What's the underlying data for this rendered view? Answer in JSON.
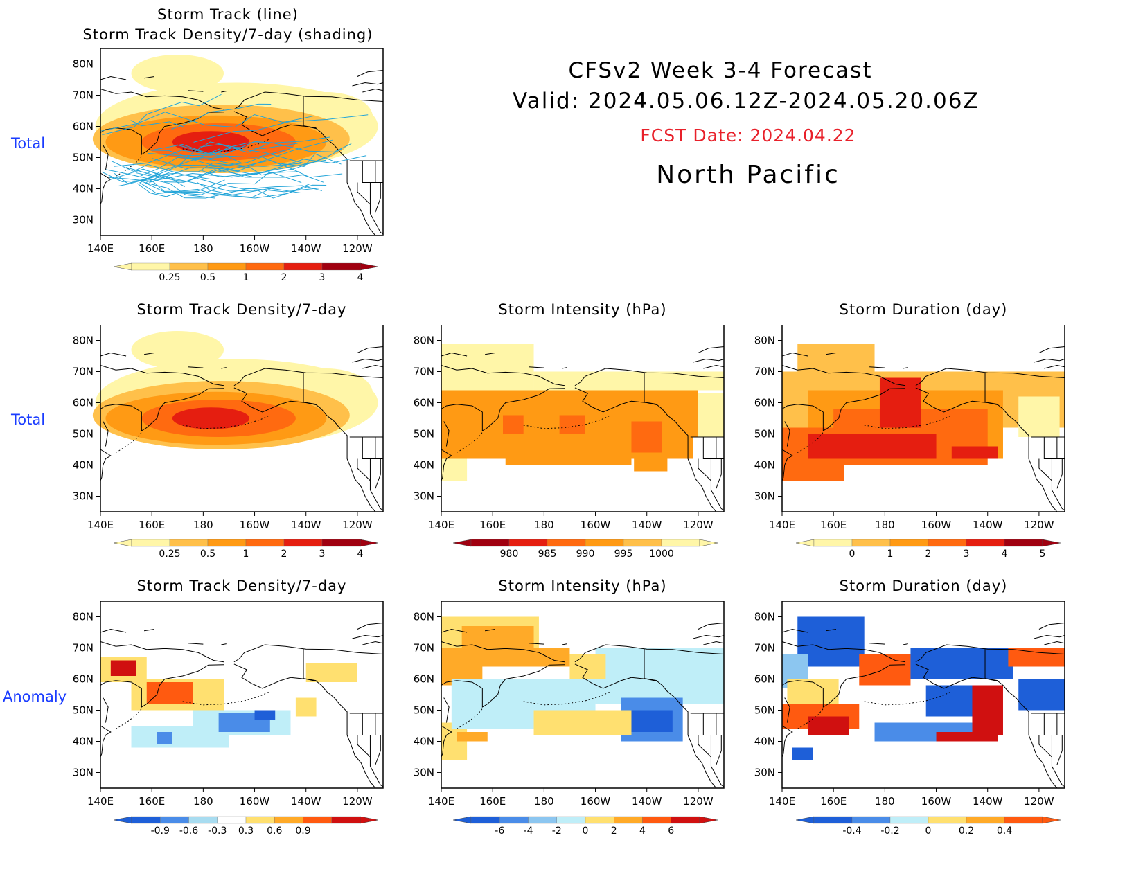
{
  "header": {
    "line1": "CFSv2  Week  3-4  Forecast",
    "line2": "Valid:  2024.05.06.12Z-2024.05.20.06Z",
    "fcst_date": "FCST Date: 2024.04.22",
    "region": "North  Pacific",
    "fcst_color": "#e8202a"
  },
  "row_labels": {
    "row1": "Total",
    "row2": "Total",
    "row3": "Anomaly"
  },
  "axes": {
    "lon_ticks": [
      "140E",
      "160E",
      "180",
      "160W",
      "140W",
      "120W"
    ],
    "lat_ticks": [
      "80N",
      "70N",
      "60N",
      "50N",
      "40N",
      "30N"
    ]
  },
  "panels": {
    "p1": {
      "title1": "Storm Track (line)",
      "title2": "Storm Track Density/7-day (shading)"
    },
    "p2": {
      "title": "Storm Track Density/7-day"
    },
    "p3": {
      "title": "Storm Intensity (hPa)"
    },
    "p4": {
      "title": "Storm Duration (day)"
    },
    "p5": {
      "title": "Storm Track Density/7-day"
    },
    "p6": {
      "title": "Storm Intensity (hPa)"
    },
    "p7": {
      "title": "Storm Duration (day)"
    }
  },
  "colorbars": {
    "density": {
      "labels": [
        "0.25",
        "0.5",
        "1",
        "2",
        "3",
        "4"
      ],
      "colors": [
        "#fff6a8",
        "#ffc04a",
        "#ff9a14",
        "#ff6a10",
        "#e51e10",
        "#a00010"
      ]
    },
    "intensity": {
      "labels": [
        "980",
        "985",
        "990",
        "995",
        "1000"
      ],
      "colors": [
        "#a00010",
        "#e51e10",
        "#ff6a10",
        "#ff9a14",
        "#ffc04a",
        "#fff6a8"
      ]
    },
    "duration": {
      "labels": [
        "0",
        "1",
        "2",
        "3",
        "4",
        "5"
      ],
      "colors": [
        "#fff6a8",
        "#ffc04a",
        "#ff9a14",
        "#ff6a10",
        "#e51e10",
        "#a00010"
      ]
    },
    "density_anom": {
      "labels": [
        "-0.9",
        "-0.6",
        "-0.3",
        "0.3",
        "0.6",
        "0.9"
      ],
      "colors": [
        "#1e5fd8",
        "#4a8ce8",
        "#a8dcf0",
        "#ffffff",
        "#ffe070",
        "#ffaa28",
        "#ff5a10",
        "#d01010"
      ]
    },
    "intensity_anom": {
      "labels": [
        "-6",
        "-4",
        "-2",
        "0",
        "2",
        "4",
        "6"
      ],
      "colors": [
        "#1e5fd8",
        "#4a8ce8",
        "#8cc6f0",
        "#bfeef8",
        "#ffe070",
        "#ffaa28",
        "#ff5a10",
        "#d01010"
      ]
    },
    "duration_anom": {
      "labels": [
        "-0.4",
        "-0.2",
        "0",
        "0.2",
        "0.4"
      ],
      "colors": [
        "#1e5fd8",
        "#4a8ce8",
        "#bfeef8",
        "#ffe070",
        "#ffaa28",
        "#ff5a10"
      ]
    }
  },
  "chart_data": [
    {
      "type": "heatmap",
      "title": "Storm Track (line) / Storm Track Density/7-day (shading)",
      "xlim": [
        "140E",
        "110W"
      ],
      "ylim": [
        "25N",
        "85N"
      ],
      "description_levels": [
        0.25,
        0.5,
        1,
        2,
        3,
        4
      ],
      "max_center": {
        "lon": 185,
        "lat": 55,
        "value": 3.5
      }
    },
    {
      "type": "heatmap",
      "title": "Storm Track Density/7-day",
      "levels": [
        0.25,
        0.5,
        1,
        2,
        3,
        4
      ],
      "max_center": {
        "lon": 185,
        "lat": 55,
        "value": 3.5
      }
    },
    {
      "type": "heatmap",
      "title": "Storm Intensity (hPa)",
      "levels": [
        980,
        985,
        990,
        995,
        1000
      ]
    },
    {
      "type": "heatmap",
      "title": "Storm Duration (day)",
      "levels": [
        0,
        1,
        2,
        3,
        4,
        5
      ]
    },
    {
      "type": "heatmap",
      "title": "Storm Track Density/7-day",
      "levels": [
        -0.9,
        -0.6,
        -0.3,
        0.3,
        0.6,
        0.9
      ]
    },
    {
      "type": "heatmap",
      "title": "Storm Intensity (hPa)",
      "levels": [
        -6,
        -4,
        -2,
        0,
        2,
        4,
        6
      ]
    },
    {
      "type": "heatmap",
      "title": "Storm Duration (day)",
      "levels": [
        -0.4,
        -0.2,
        0,
        0.2,
        0.4
      ]
    }
  ]
}
